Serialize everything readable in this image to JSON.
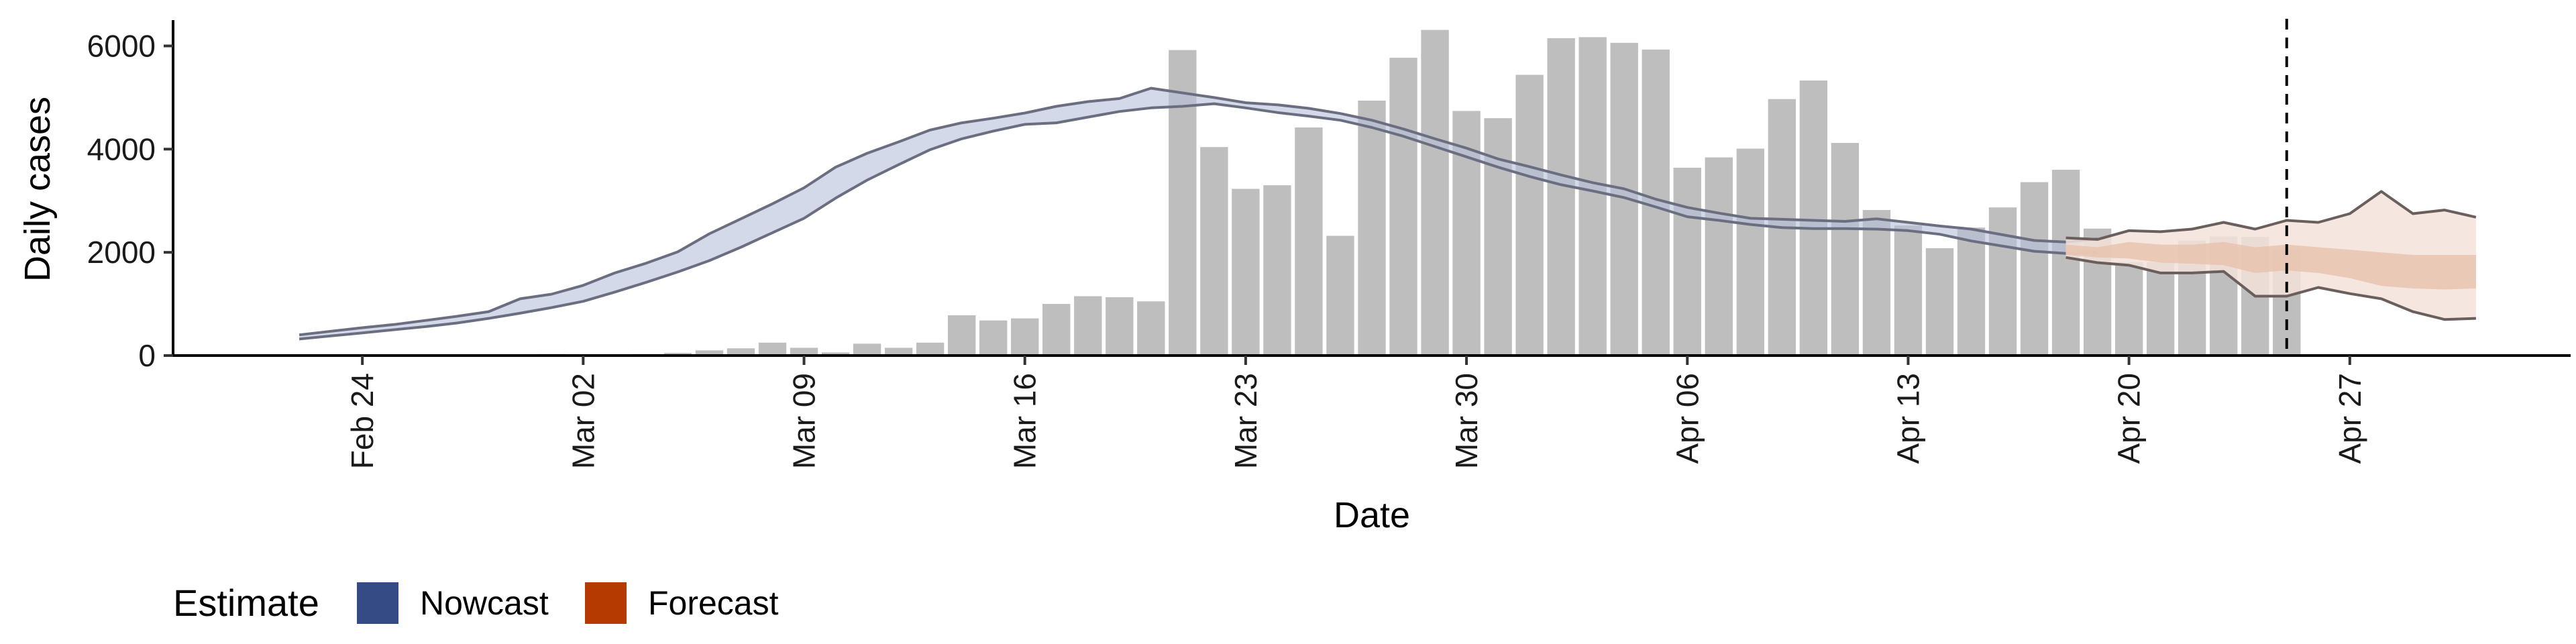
{
  "chart_data": {
    "type": "bar",
    "xlabel": "Date",
    "ylabel": "Daily cases",
    "ylim": [
      0,
      6500
    ],
    "yticks": [
      0,
      2000,
      4000,
      6000
    ],
    "y_tick_labels": [
      "0",
      "2000",
      "4000",
      "6000"
    ],
    "x_range": [
      "2020-02-18",
      "2020-05-04"
    ],
    "x_ticks": [
      {
        "date": "2020-02-24",
        "label": "Feb 24"
      },
      {
        "date": "2020-03-02",
        "label": "Mar 02"
      },
      {
        "date": "2020-03-09",
        "label": "Mar 09"
      },
      {
        "date": "2020-03-16",
        "label": "Mar 16"
      },
      {
        "date": "2020-03-23",
        "label": "Mar 23"
      },
      {
        "date": "2020-03-30",
        "label": "Mar 30"
      },
      {
        "date": "2020-04-06",
        "label": "Apr 06"
      },
      {
        "date": "2020-04-13",
        "label": "Apr 13"
      },
      {
        "date": "2020-04-20",
        "label": "Apr 20"
      },
      {
        "date": "2020-04-27",
        "label": "Apr 27"
      }
    ],
    "vline_date": "2020-04-25",
    "grid": false,
    "legend_position": "bottom-left",
    "legend": {
      "title": "Estimate",
      "items": [
        {
          "label": "Nowcast",
          "color": "#344B85"
        },
        {
          "label": "Forecast",
          "color": "#B53A00"
        }
      ]
    },
    "colors": {
      "bars": "#BEBEBE",
      "nowcast_band": "#B5BFD8",
      "nowcast_line": "#6B6E80",
      "forecast_band_outer": "#F3E3DA",
      "forecast_band_inner": "#E8C3AE",
      "forecast_line": "#6A5F5C"
    },
    "reported_cases": {
      "start_date": "2020-02-27",
      "values": [
        0,
        5,
        10,
        30,
        12,
        20,
        30,
        50,
        100,
        140,
        250,
        150,
        60,
        230,
        150,
        250,
        780,
        680,
        720,
        1000,
        1150,
        1130,
        1050,
        5920,
        4040,
        3230,
        3300,
        4420,
        2320,
        4940,
        5770,
        6310,
        4740,
        4600,
        5440,
        6150,
        6170,
        6060,
        5930,
        3640,
        3840,
        4010,
        4970,
        5330,
        4120,
        2820,
        2520,
        2080,
        2480,
        2870,
        3360,
        3600,
        2460,
        1810,
        1810,
        2230,
        2310,
        2300,
        2050
      ]
    },
    "nowcast": {
      "start_date": "2020-02-22",
      "lower": [
        320,
        380,
        440,
        500,
        560,
        630,
        720,
        820,
        930,
        1050,
        1230,
        1420,
        1620,
        1840,
        2100,
        2380,
        2660,
        3050,
        3400,
        3700,
        3990,
        4200,
        4350,
        4480,
        4510,
        4620,
        4730,
        4800,
        4830,
        4880,
        4800,
        4710,
        4640,
        4560,
        4420,
        4250,
        4050,
        3850,
        3650,
        3470,
        3310,
        3190,
        3060,
        2880,
        2690,
        2620,
        2540,
        2480,
        2460,
        2460,
        2450,
        2420,
        2350,
        2220,
        2120,
        2020,
        1980,
        2000
      ],
      "upper": [
        400,
        470,
        540,
        600,
        680,
        760,
        850,
        1100,
        1190,
        1360,
        1600,
        1790,
        2010,
        2360,
        2650,
        2940,
        3250,
        3650,
        3920,
        4140,
        4370,
        4510,
        4600,
        4700,
        4830,
        4920,
        4980,
        5180,
        5090,
        5000,
        4900,
        4860,
        4790,
        4690,
        4560,
        4390,
        4200,
        4020,
        3810,
        3660,
        3500,
        3350,
        3230,
        3030,
        2870,
        2760,
        2660,
        2640,
        2620,
        2600,
        2650,
        2580,
        2510,
        2450,
        2340,
        2230,
        2200,
        2260
      ]
    },
    "forecast": {
      "start_date": "2020-04-18",
      "lower": [
        1900,
        1800,
        1750,
        1600,
        1600,
        1630,
        1150,
        1150,
        1320,
        1200,
        1100,
        850,
        700,
        720
      ],
      "upper": [
        2280,
        2250,
        2420,
        2400,
        2450,
        2580,
        2450,
        2620,
        2580,
        2750,
        3180,
        2750,
        2820,
        2680
      ],
      "inner_lower": [
        1950,
        1900,
        1880,
        1800,
        1780,
        1750,
        1600,
        1650,
        1600,
        1500,
        1350,
        1300,
        1280,
        1300
      ],
      "inner_upper": [
        2150,
        2100,
        2200,
        2150,
        2150,
        2200,
        2100,
        2150,
        2100,
        2050,
        2000,
        1950,
        1950,
        1950
      ]
    }
  }
}
